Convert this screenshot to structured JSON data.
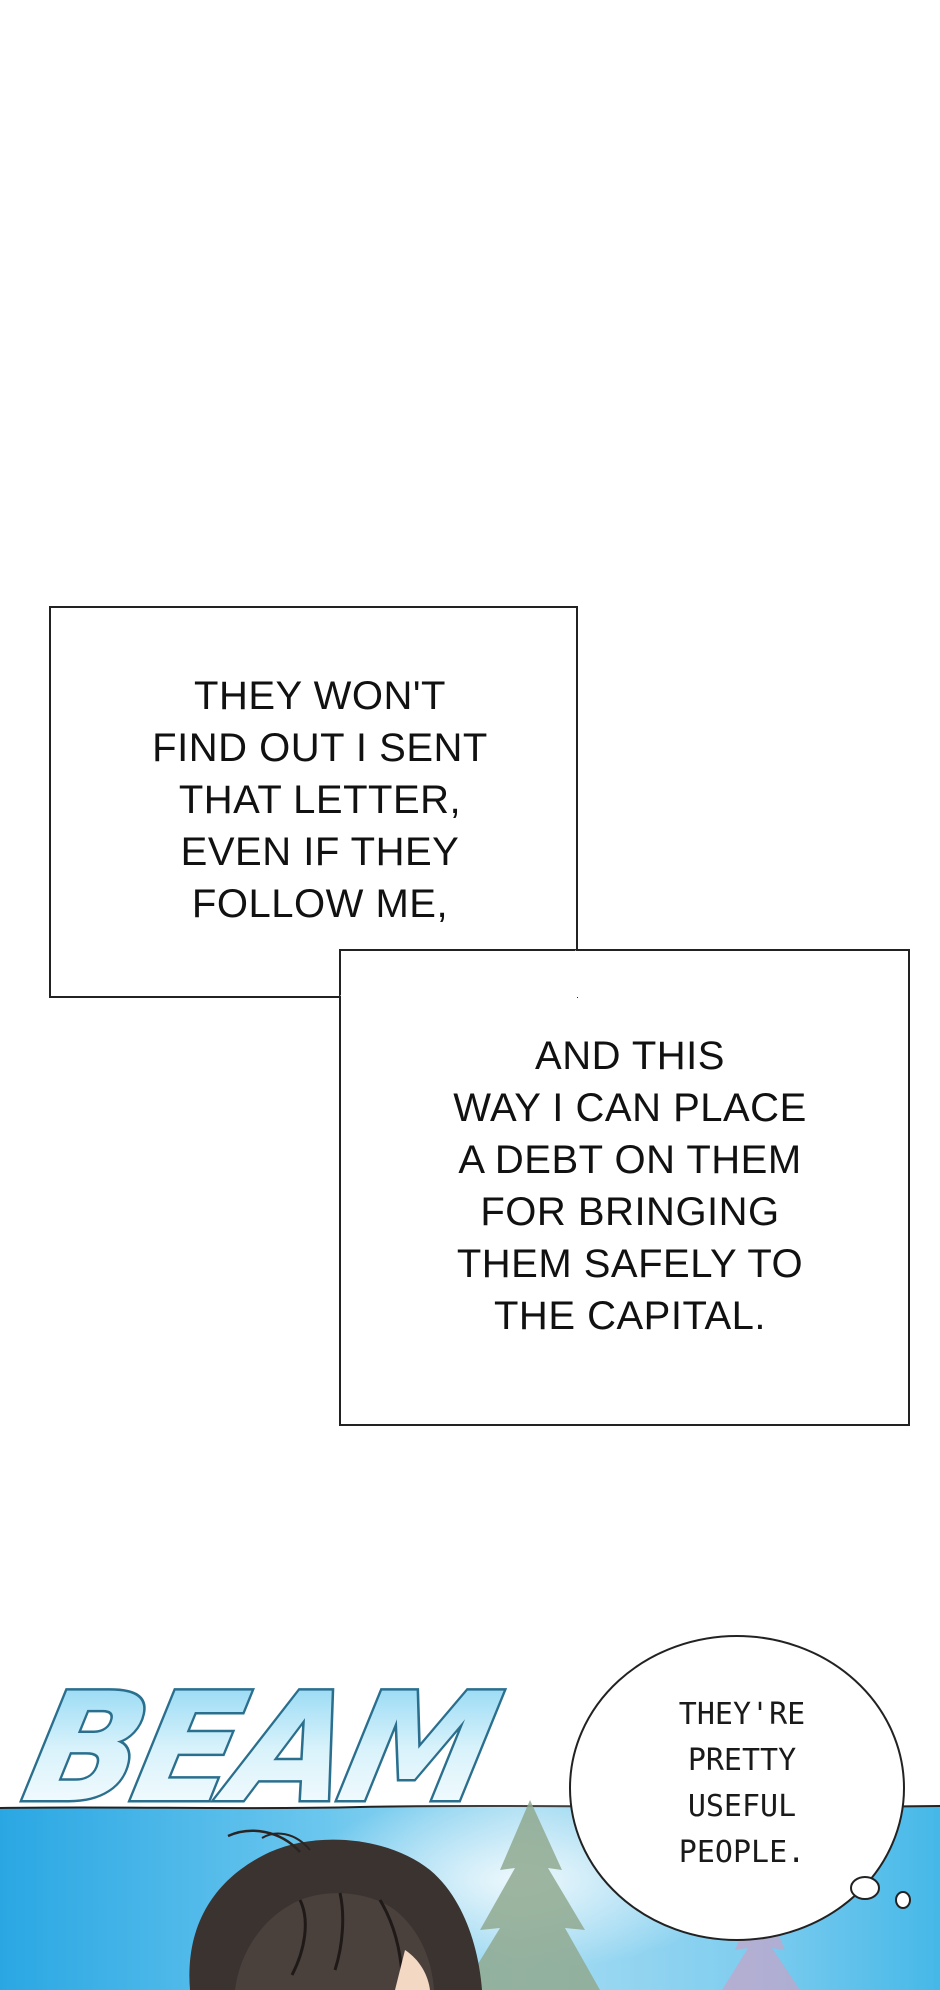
{
  "caption_1": {
    "lines": [
      "THEY WON'T",
      "FIND OUT I SENT",
      "THAT LETTER,",
      "EVEN IF THEY",
      "FOLLOW ME,"
    ]
  },
  "caption_2": {
    "lines": [
      "AND THIS",
      "WAY I CAN PLACE",
      "A DEBT ON THEM",
      "FOR BRINGING",
      "THEM SAFELY TO",
      "THE CAPITAL."
    ]
  },
  "sound_effect": {
    "text": "BEAM"
  },
  "thought_bubble": {
    "lines": [
      "THEY'RE",
      "PRETTY",
      "USEFUL",
      "PEOPLE."
    ]
  },
  "colors": {
    "panel_sky": "#3fb6e8",
    "sfx_fill": "#cfeefa",
    "sfx_outline": "#2a6f8e",
    "hair": "#3b3431",
    "tree": "#8aa889"
  }
}
